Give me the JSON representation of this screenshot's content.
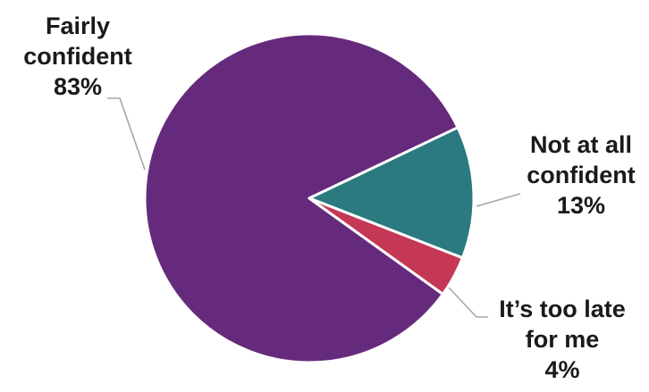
{
  "chart_data": {
    "type": "pie",
    "slices": [
      {
        "label_lines": [
          "Fairly",
          "confident"
        ],
        "value_text": "83%",
        "value": 83,
        "color": "#662a7d"
      },
      {
        "label_lines": [
          "Not at all",
          "confident"
        ],
        "value_text": "13%",
        "value": 13,
        "color": "#2b7a80"
      },
      {
        "label_lines": [
          "It’s too late",
          "for me"
        ],
        "value_text": "4%",
        "value": 4,
        "color": "#c43855"
      }
    ],
    "start_angle_deg": 0
  }
}
